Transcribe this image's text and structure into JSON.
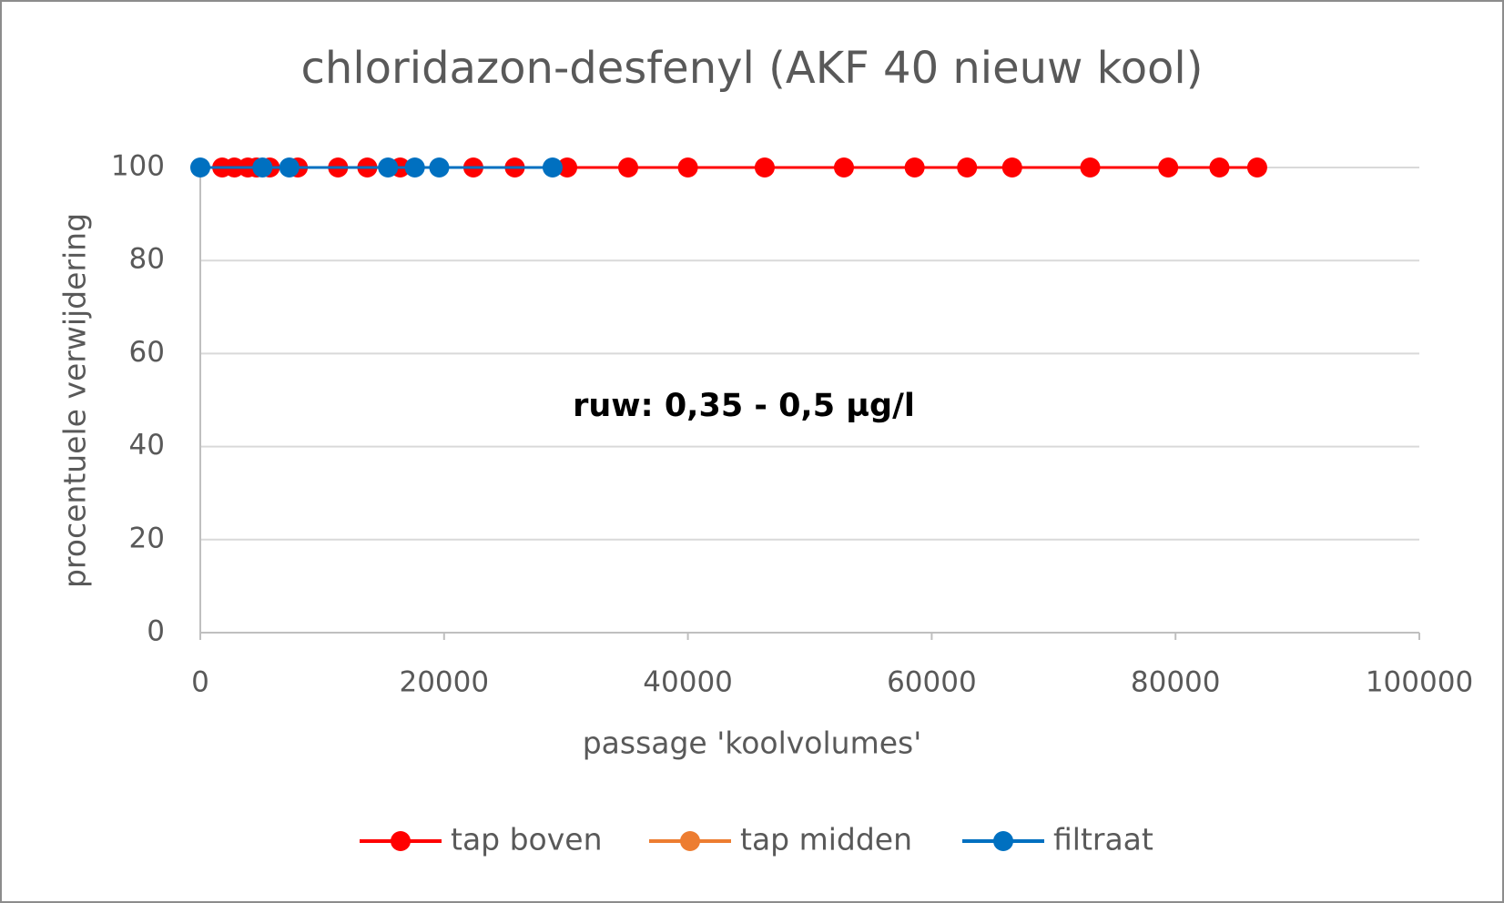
{
  "chart_data": {
    "type": "scatter",
    "title": "chloridazon-desfenyl (AKF 40 nieuw kool)",
    "xlabel": "passage 'koolvolumes'",
    "ylabel": "procentuele verwijdering",
    "annotation": "ruw: 0,35 - 0,5 µg/l",
    "xlim": [
      0,
      100000
    ],
    "xticks": [
      0,
      20000,
      40000,
      60000,
      80000,
      100000
    ],
    "ylim": [
      0,
      100
    ],
    "yticks": [
      0,
      20,
      40,
      60,
      80,
      100
    ],
    "grid": true,
    "legend": "bottom",
    "series": [
      {
        "name": "tap boven",
        "color": "#ff0000",
        "x": [
          1800,
          2800,
          3900,
          4600,
          5700,
          8000,
          11300,
          13700,
          16400,
          22400,
          25800,
          30100,
          35100,
          40000,
          46300,
          52800,
          58600,
          62900,
          66600,
          73000,
          79400,
          83600,
          86700
        ],
        "values": [
          100,
          100,
          100,
          100,
          100,
          100,
          100,
          100,
          100,
          100,
          100,
          100,
          100,
          100,
          100,
          100,
          100,
          100,
          100,
          100,
          100,
          100,
          100
        ]
      },
      {
        "name": "tap midden",
        "color": "#ed7d31",
        "x": [],
        "values": []
      },
      {
        "name": "filtraat",
        "color": "#0070c0",
        "x": [
          0,
          5100,
          7300,
          15400,
          17600,
          19600,
          28900
        ],
        "values": [
          100,
          100,
          100,
          100,
          100,
          100,
          100
        ]
      }
    ]
  }
}
